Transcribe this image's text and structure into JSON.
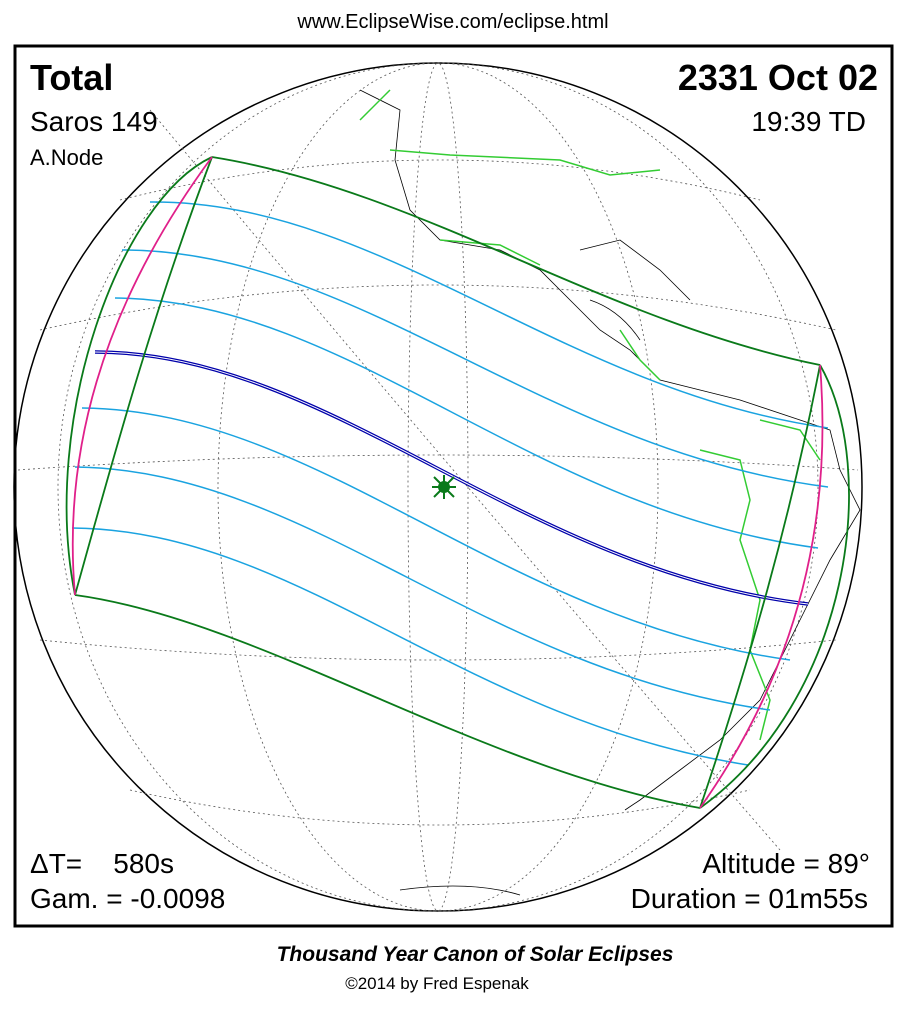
{
  "header": {
    "url": "www.EclipseWise.com/eclipse.html"
  },
  "map": {
    "eclipse_type": "Total",
    "saros": "Saros 149",
    "node": "A.Node",
    "date": "2331 Oct 02",
    "time": "19:39 TD",
    "delta_t": "ΔT=    580s",
    "gamma": "Gam. = -0.0098",
    "altitude": "Altitude = 89°",
    "duration": "Duration = 01m55s"
  },
  "footer": {
    "title": "Thousand Year Canon of Solar Eclipses",
    "copyright": "©2014 by Fred Espenak"
  }
}
